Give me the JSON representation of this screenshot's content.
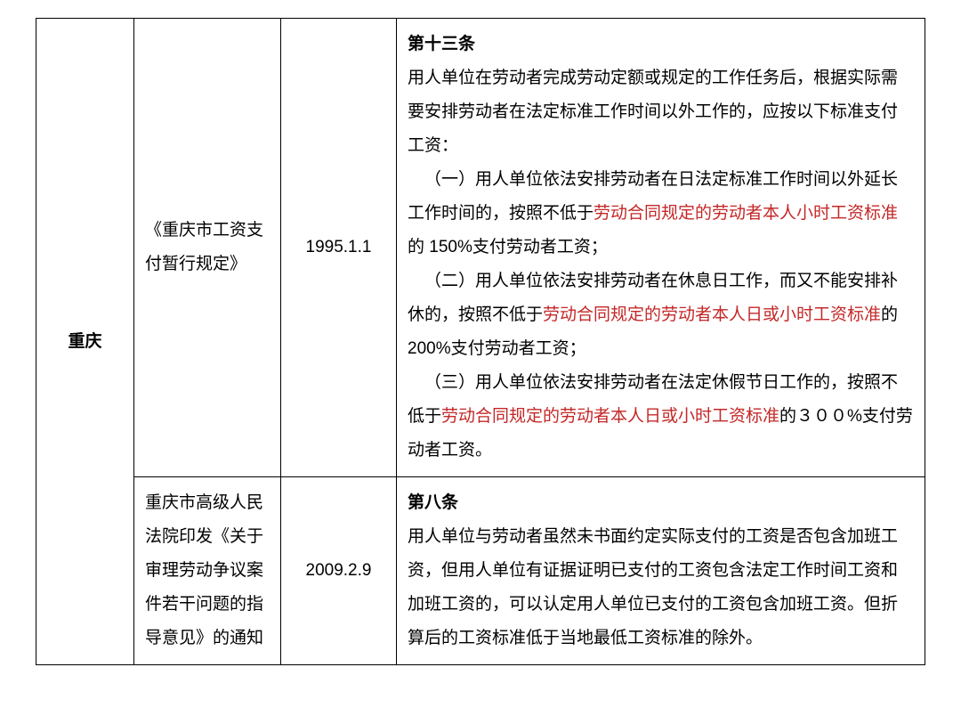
{
  "colors": {
    "text": "#000000",
    "highlight": "#c42828",
    "border": "#000000",
    "background": "#ffffff"
  },
  "typography": {
    "font_family": "Microsoft YaHei",
    "font_size_pt": 14,
    "line_height": 2.0
  },
  "table": {
    "region": "重庆",
    "rows": [
      {
        "document": "《重庆市工资支付暂行规定》",
        "date": "1995.1.1",
        "article_title": "第十三条",
        "p1": "用人单位在劳动者完成劳动定额或规定的工作任务后，根据实际需要安排劳动者在法定标准工作时间以外工作的，应按以下标准支付工资：",
        "i1_a": "（一）用人单位依法安排劳动者在日法定标准工作时间以外延长工作时间的，按照不低于",
        "i1_hl": "劳动合同规定的劳动者本人小时工资标准",
        "i1_b": "的 150%支付劳动者工资；",
        "i2_a": "（二）用人单位依法安排劳动者在休息日工作，而又不能安排补休的，按照不低于",
        "i2_hl": "劳动合同规定的劳动者本人日或小时工资标准",
        "i2_b": "的 200%支付劳动者工资；",
        "i3_a": "（三）用人单位依法安排劳动者在法定休假节日工作的，按照不低于",
        "i3_hl": "劳动合同规定的劳动者本人日或小时工资标准",
        "i3_b": "的３００%支付劳动者工资。"
      },
      {
        "document": "重庆市高级人民法院印发《关于审理劳动争议案件若干问题的指导意见》的通知",
        "date": "2009.2.9",
        "article_title": "第八条",
        "p1": "用人单位与劳动者虽然未书面约定实际支付的工资是否包含加班工资，但用人单位有证据证明已支付的工资包含法定工作时间工资和加班工资的，可以认定用人单位已支付的工资包含加班工资。但折算后的工资标准低于当地最低工资标准的除外。"
      }
    ]
  }
}
